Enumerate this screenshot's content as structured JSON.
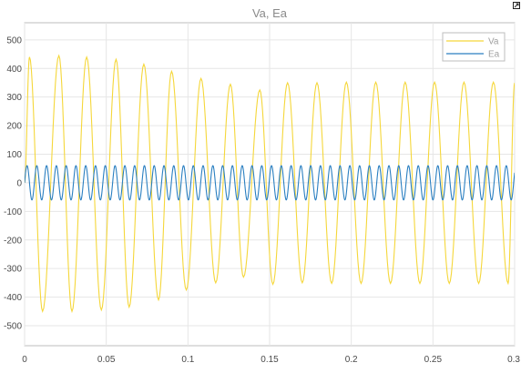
{
  "chart_data": {
    "type": "line",
    "title": "Va, Ea",
    "xlabel": "",
    "ylabel": "",
    "xlim": [
      0,
      0.3
    ],
    "ylim": [
      -570,
      560
    ],
    "x_ticks": [
      0,
      0.05,
      0.1,
      0.15,
      0.2,
      0.25,
      0.3
    ],
    "x_tick_labels": [
      "0",
      "0.05",
      "0.1",
      "0.15",
      "0.2",
      "0.25",
      "0.3"
    ],
    "y_ticks": [
      -500,
      -400,
      -300,
      -200,
      -100,
      0,
      100,
      200,
      300,
      400,
      500
    ],
    "y_tick_labels": [
      "-500",
      "-400",
      "-300",
      "-200",
      "-100",
      "0",
      "100",
      "200",
      "300",
      "400",
      "500"
    ],
    "grid": true,
    "legend_position": "top-right",
    "series": [
      {
        "name": "Va",
        "color": "#f5d73a",
        "style": "damped-sine",
        "frequency_hz": 55,
        "peaks": [
          [
            0.003,
            440
          ],
          [
            0.011,
            -450
          ],
          [
            0.021,
            445
          ],
          [
            0.029,
            -450
          ],
          [
            0.038,
            440
          ],
          [
            0.047,
            -445
          ],
          [
            0.056,
            432
          ],
          [
            0.064,
            -435
          ],
          [
            0.073,
            415
          ],
          [
            0.082,
            -410
          ],
          [
            0.09,
            390
          ],
          [
            0.099,
            -375
          ],
          [
            0.108,
            365
          ],
          [
            0.117,
            -350
          ],
          [
            0.126,
            345
          ],
          [
            0.134,
            -330
          ],
          [
            0.144,
            325
          ],
          [
            0.152,
            -355
          ],
          [
            0.161,
            350
          ],
          [
            0.17,
            -350
          ],
          [
            0.179,
            350
          ],
          [
            0.188,
            -352
          ],
          [
            0.197,
            352
          ],
          [
            0.206,
            -352
          ],
          [
            0.215,
            352
          ],
          [
            0.224,
            -352
          ],
          [
            0.233,
            352
          ],
          [
            0.242,
            -352
          ],
          [
            0.251,
            352
          ],
          [
            0.26,
            -352
          ],
          [
            0.269,
            352
          ],
          [
            0.278,
            -352
          ],
          [
            0.287,
            352
          ],
          [
            0.296,
            -352
          ],
          [
            0.3,
            350
          ]
        ]
      },
      {
        "name": "Ea",
        "color": "#2a7fc1",
        "style": "sine",
        "frequency_hz": 167,
        "amplitude": 60,
        "offset": 0
      }
    ]
  },
  "toolbar": {
    "expand_icon": "expand-icon"
  }
}
